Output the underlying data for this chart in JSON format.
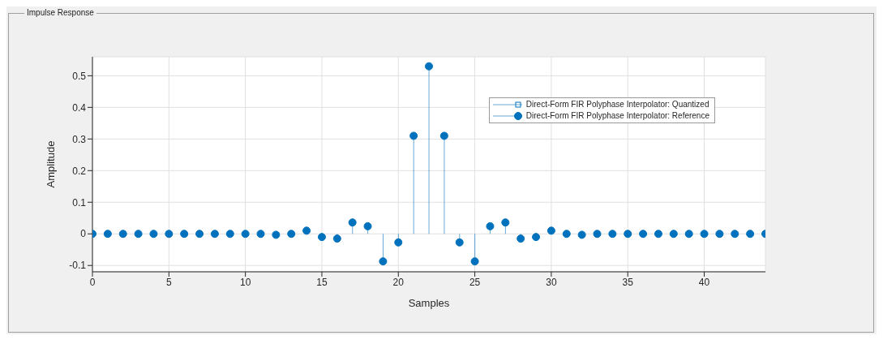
{
  "chart_data": {
    "type": "lollipop",
    "title": "Impulse Response",
    "xlabel": "Samples",
    "ylabel": "Amplitude",
    "x": [
      0,
      1,
      2,
      3,
      4,
      5,
      6,
      7,
      8,
      9,
      10,
      11,
      12,
      13,
      14,
      15,
      16,
      17,
      18,
      19,
      20,
      21,
      22,
      23,
      24,
      25,
      26,
      27,
      28,
      29,
      30,
      31,
      32,
      33,
      34,
      35,
      36,
      37,
      38,
      39,
      40,
      41,
      42,
      43,
      44
    ],
    "series": [
      {
        "name": "Direct-Form FIR Polyphase Interpolator: Quantized",
        "color": "#0072bd",
        "marker": "square",
        "values": [
          null,
          null,
          null,
          null,
          null,
          null,
          null,
          null,
          null,
          null,
          null,
          null,
          null,
          null,
          null,
          null,
          null,
          null,
          null,
          null,
          null,
          null,
          null,
          null,
          null,
          null,
          null,
          null,
          null,
          null,
          null,
          null,
          null,
          null,
          null,
          null,
          null,
          null,
          null,
          null,
          null,
          null,
          null,
          null,
          null
        ]
      },
      {
        "name": "Direct-Form FIR Polyphase Interpolator: Reference",
        "color": "#0072bd",
        "marker": "circle",
        "values": [
          0,
          0,
          0,
          0,
          0,
          0,
          0,
          0,
          0,
          0,
          0,
          0,
          -0.003,
          0,
          0.01,
          -0.01,
          -0.015,
          0.036,
          0.024,
          -0.087,
          -0.027,
          0.31,
          0.53,
          0.31,
          -0.027,
          -0.087,
          0.024,
          0.036,
          -0.015,
          -0.01,
          0.01,
          0,
          -0.003,
          0,
          0,
          0,
          0,
          0,
          0,
          0,
          0,
          0,
          0,
          0,
          0
        ]
      }
    ],
    "xlim": [
      0,
      44
    ],
    "xticks": [
      0,
      5,
      10,
      15,
      20,
      25,
      30,
      35,
      40
    ],
    "ylim": [
      -0.12,
      0.56
    ],
    "yticks": [
      -0.1,
      0,
      0.1,
      0.2,
      0.3,
      0.4,
      0.5
    ],
    "grid": true,
    "legend": "top right"
  }
}
